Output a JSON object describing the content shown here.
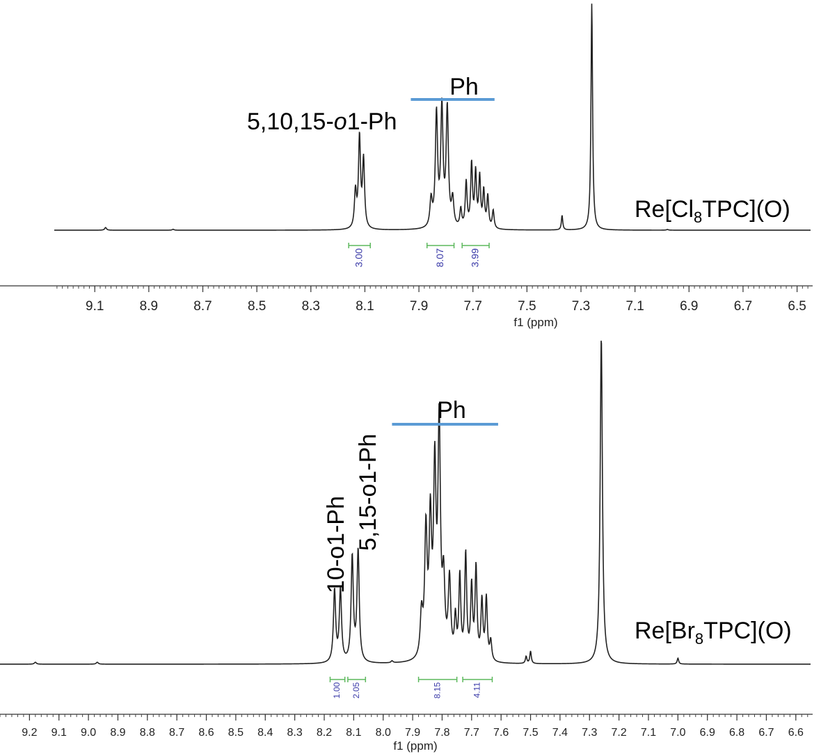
{
  "colors": {
    "spectrum": "#222222",
    "ph_bar": "#5b9bd5",
    "integration_bracket": "#5cb85c",
    "integration_value": "#3a3aa8"
  },
  "chart_data": [
    {
      "type": "line",
      "xlabel": "f1 (ppm)",
      "x_reversed": true,
      "xlim": [
        9.25,
        6.45
      ],
      "xticks": [
        9.1,
        8.9,
        8.7,
        8.5,
        8.3,
        8.1,
        7.9,
        7.7,
        7.5,
        7.3,
        7.1,
        6.9,
        6.7,
        6.5
      ],
      "xtick_labels": [
        "9.1",
        "8.9",
        "8.7",
        "8.5",
        "8.3",
        "8.1",
        "7.9",
        "7.7",
        "7.5",
        "7.3",
        "7.1",
        "6.9",
        "6.7",
        "6.5"
      ],
      "compound_label": {
        "main": "Re[Cl",
        "sub": "8",
        "tail": "TPC](O)"
      },
      "annotations": [
        {
          "text_main": "5,10,15-",
          "text_italic": "o",
          "text_tail": "1-Ph"
        },
        {
          "text": "Ph",
          "bar_ppm": [
            7.93,
            7.62
          ]
        }
      ],
      "peaks": [
        {
          "ppm": 9.06,
          "h": 0.012,
          "w": 0.004
        },
        {
          "ppm": 8.81,
          "h": 0.004,
          "w": 0.004
        },
        {
          "ppm": 8.135,
          "h": 0.16,
          "w": 0.0045
        },
        {
          "ppm": 8.12,
          "h": 0.4,
          "w": 0.0045
        },
        {
          "ppm": 8.105,
          "h": 0.3,
          "w": 0.0045
        },
        {
          "ppm": 7.855,
          "h": 0.12,
          "w": 0.005
        },
        {
          "ppm": 7.835,
          "h": 0.5,
          "w": 0.005
        },
        {
          "ppm": 7.815,
          "h": 0.52,
          "w": 0.005
        },
        {
          "ppm": 7.795,
          "h": 0.52,
          "w": 0.005
        },
        {
          "ppm": 7.775,
          "h": 0.12,
          "w": 0.005
        },
        {
          "ppm": 7.745,
          "h": 0.08,
          "w": 0.004
        },
        {
          "ppm": 7.725,
          "h": 0.2,
          "w": 0.004
        },
        {
          "ppm": 7.705,
          "h": 0.28,
          "w": 0.004
        },
        {
          "ppm": 7.69,
          "h": 0.24,
          "w": 0.004
        },
        {
          "ppm": 7.675,
          "h": 0.22,
          "w": 0.004
        },
        {
          "ppm": 7.66,
          "h": 0.16,
          "w": 0.004
        },
        {
          "ppm": 7.645,
          "h": 0.14,
          "w": 0.004
        },
        {
          "ppm": 7.625,
          "h": 0.08,
          "w": 0.004
        },
        {
          "ppm": 7.37,
          "h": 0.065,
          "w": 0.003
        },
        {
          "ppm": 7.26,
          "h": 1.0,
          "w": 0.0035
        },
        {
          "ppm": 6.98,
          "h": 0.003,
          "w": 0.004
        }
      ],
      "integrations": [
        {
          "value": "3.00",
          "from": 8.16,
          "to": 8.08
        },
        {
          "value": "8.07",
          "from": 7.87,
          "to": 7.77
        },
        {
          "value": "3.99",
          "from": 7.74,
          "to": 7.64
        }
      ]
    },
    {
      "type": "line",
      "xlabel": "f1 (ppm)",
      "x_reversed": true,
      "xlim": [
        9.3,
        6.55
      ],
      "xticks": [
        9.2,
        9.1,
        9.0,
        8.9,
        8.8,
        8.7,
        8.6,
        8.5,
        8.4,
        8.3,
        8.2,
        8.1,
        8.0,
        7.9,
        7.8,
        7.7,
        7.6,
        7.5,
        7.4,
        7.3,
        7.2,
        7.1,
        7.0,
        6.9,
        6.8,
        6.7,
        6.6
      ],
      "xtick_labels": [
        "9.2",
        "9.1",
        "9.0",
        "8.9",
        "8.8",
        "8.7",
        "8.6",
        "8.5",
        "8.4",
        "8.3",
        "8.2",
        "8.1",
        "8.0",
        "7.9",
        "7.8",
        "7.7",
        "7.6",
        "7.5",
        "7.4",
        "7.3",
        "7.2",
        "7.1",
        "7.0",
        "6.9",
        "6.8",
        "6.7",
        "6.6"
      ],
      "compound_label": {
        "main": "Re[Br",
        "sub": "8",
        "tail": "TPC](O)"
      },
      "annotations": [
        {
          "text": "10-o1-Ph"
        },
        {
          "text": "5,15-o1-Ph"
        },
        {
          "text": "Ph",
          "bar_ppm": [
            7.97,
            7.61
          ]
        }
      ],
      "peaks": [
        {
          "ppm": 9.18,
          "h": 0.006,
          "w": 0.004
        },
        {
          "ppm": 8.97,
          "h": 0.006,
          "w": 0.004
        },
        {
          "ppm": 8.165,
          "h": 0.22,
          "w": 0.0045
        },
        {
          "ppm": 8.145,
          "h": 0.22,
          "w": 0.0045
        },
        {
          "ppm": 8.105,
          "h": 0.32,
          "w": 0.0045
        },
        {
          "ppm": 8.085,
          "h": 0.34,
          "w": 0.0045
        },
        {
          "ppm": 7.97,
          "h": 0.006,
          "w": 0.004
        },
        {
          "ppm": 7.87,
          "h": 0.13,
          "w": 0.005
        },
        {
          "ppm": 7.855,
          "h": 0.38,
          "w": 0.005
        },
        {
          "ppm": 7.84,
          "h": 0.4,
          "w": 0.005
        },
        {
          "ppm": 7.825,
          "h": 0.55,
          "w": 0.005
        },
        {
          "ppm": 7.81,
          "h": 0.7,
          "w": 0.005
        },
        {
          "ppm": 7.795,
          "h": 0.22,
          "w": 0.005
        },
        {
          "ppm": 7.775,
          "h": 0.24,
          "w": 0.005
        },
        {
          "ppm": 7.755,
          "h": 0.12,
          "w": 0.004
        },
        {
          "ppm": 7.74,
          "h": 0.25,
          "w": 0.004
        },
        {
          "ppm": 7.72,
          "h": 0.32,
          "w": 0.004
        },
        {
          "ppm": 7.7,
          "h": 0.22,
          "w": 0.004
        },
        {
          "ppm": 7.685,
          "h": 0.28,
          "w": 0.004
        },
        {
          "ppm": 7.665,
          "h": 0.18,
          "w": 0.004
        },
        {
          "ppm": 7.65,
          "h": 0.19,
          "w": 0.004
        },
        {
          "ppm": 7.635,
          "h": 0.06,
          "w": 0.004
        },
        {
          "ppm": 7.515,
          "h": 0.022,
          "w": 0.003
        },
        {
          "ppm": 7.5,
          "h": 0.038,
          "w": 0.003
        },
        {
          "ppm": 7.26,
          "h": 1.0,
          "w": 0.0045
        },
        {
          "ppm": 7.0,
          "h": 0.018,
          "w": 0.003
        }
      ],
      "integrations": [
        {
          "value": "1.00",
          "from": 8.18,
          "to": 8.13
        },
        {
          "value": "2.05",
          "from": 8.12,
          "to": 8.06
        },
        {
          "value": "8.15",
          "from": 7.88,
          "to": 7.75
        },
        {
          "value": "4.11",
          "from": 7.73,
          "to": 7.63
        }
      ]
    }
  ]
}
